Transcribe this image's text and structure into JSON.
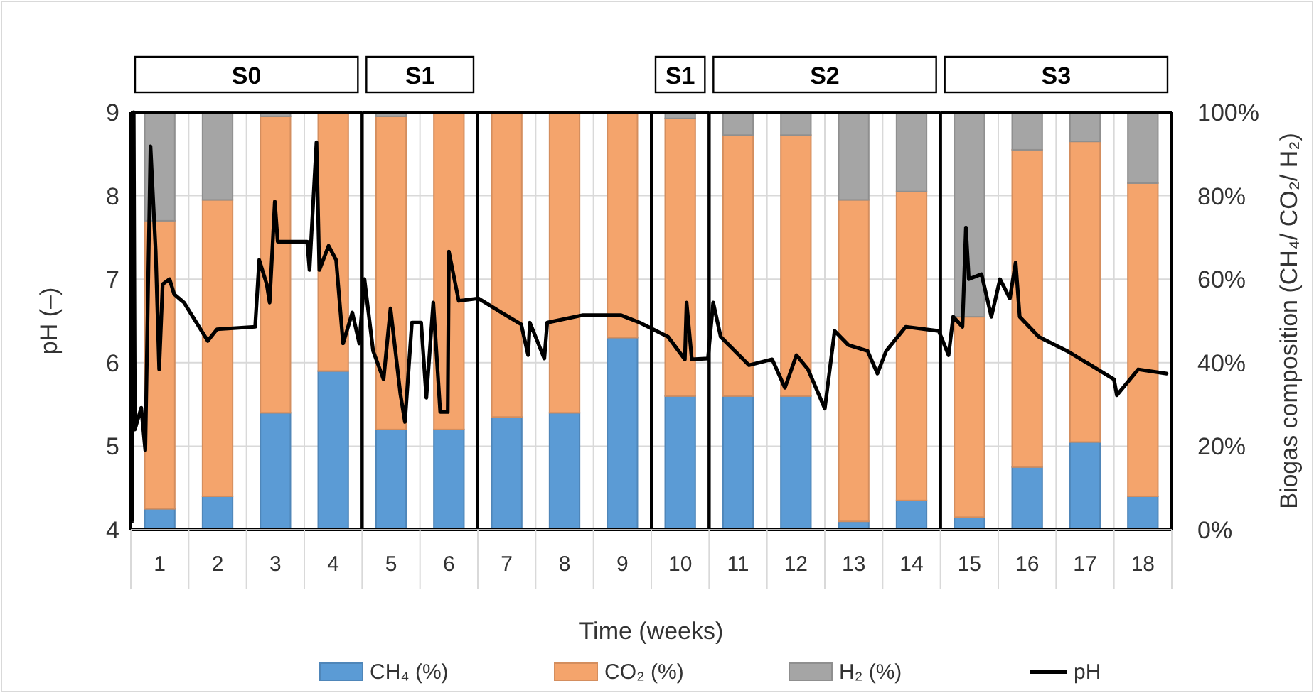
{
  "chart_data": {
    "type": "bar",
    "stacked": true,
    "xlabel": "Time (weeks)",
    "ylabel": "pH (–)",
    "y2label": "Biogas composition (CH₄/ CO₂/ H₂)",
    "x": [
      1,
      2,
      3,
      4,
      5,
      6,
      7,
      8,
      9,
      10,
      11,
      12,
      13,
      14,
      15,
      16,
      17,
      18
    ],
    "xlim": [
      0.5,
      18.5
    ],
    "xticks": [
      1,
      2,
      3,
      4,
      5,
      6,
      7,
      8,
      9,
      10,
      11,
      12,
      13,
      14,
      15,
      16,
      17,
      18
    ],
    "series": [
      {
        "name": "CH₄ (%)",
        "color": "#5b9bd5",
        "axis": "y2",
        "values": [
          5,
          8,
          28,
          38,
          24,
          24,
          27,
          28,
          46,
          32,
          32,
          32,
          2,
          7,
          3,
          15,
          21,
          8
        ]
      },
      {
        "name": "CO₂ (%)",
        "color": "#f4a46c",
        "axis": "y2",
        "values": [
          69,
          71,
          71,
          62,
          75,
          76,
          73,
          72,
          54,
          66.5,
          62.5,
          62.5,
          77,
          74,
          48,
          76,
          72,
          75
        ]
      },
      {
        "name": "H₂ (%)",
        "color": "#a5a5a5",
        "axis": "y2",
        "values": [
          26,
          21,
          1,
          0,
          1,
          0,
          0,
          0,
          0,
          1.5,
          5.5,
          5.5,
          21,
          19,
          49,
          9,
          7,
          17
        ]
      },
      {
        "name": "pH",
        "type": "line",
        "color": "#000000",
        "x": [
          0.5,
          0.52,
          0.55,
          0.57,
          0.68,
          0.75,
          0.84,
          0.93,
          0.99,
          1.05,
          1.17,
          1.25,
          1.42,
          1.83,
          1.99,
          2.65,
          2.72,
          2.85,
          2.9,
          2.99,
          3.04,
          3.55,
          3.59,
          3.71,
          3.76,
          3.92,
          4.05,
          4.17,
          4.33,
          4.45,
          4.54,
          4.69,
          4.87,
          4.99,
          5.16,
          5.24,
          5.36,
          5.52,
          5.61,
          5.73,
          5.85,
          5.98,
          6.0,
          6.17,
          6.51,
          6.91,
          7.25,
          7.37,
          7.4,
          7.65,
          7.7,
          8.32,
          8.97,
          9.3,
          9.79,
          10.08,
          10.11,
          10.2,
          10.48,
          10.57,
          10.7,
          11.19,
          11.59,
          11.81,
          12.01,
          12.21,
          12.5,
          12.67,
          12.91,
          13.24,
          13.41,
          13.56,
          13.9,
          14.47,
          14.64,
          14.72,
          14.88,
          14.94,
          14.99,
          15.21,
          15.38,
          15.53,
          15.7,
          15.8,
          15.87,
          16.2,
          16.69,
          17.1,
          17.5,
          17.55,
          17.92,
          18.41
        ],
        "values": [
          4.4,
          4.1,
          9.0,
          5.2,
          5.46,
          4.95,
          8.59,
          7.33,
          5.92,
          6.94,
          7.0,
          6.82,
          6.72,
          6.26,
          6.4,
          6.43,
          7.23,
          6.94,
          6.72,
          7.93,
          7.45,
          7.45,
          7.11,
          8.64,
          7.11,
          7.4,
          7.23,
          6.23,
          6.6,
          6.23,
          7.0,
          6.14,
          5.8,
          6.65,
          5.63,
          5.29,
          6.48,
          6.48,
          5.58,
          6.72,
          5.41,
          5.41,
          7.33,
          6.74,
          6.77,
          6.6,
          6.46,
          6.09,
          6.48,
          6.05,
          6.48,
          6.57,
          6.57,
          6.48,
          6.31,
          6.04,
          6.72,
          6.04,
          6.05,
          6.72,
          6.31,
          5.97,
          6.04,
          5.7,
          6.09,
          5.92,
          5.45,
          6.38,
          6.21,
          6.14,
          5.87,
          6.14,
          6.43,
          6.38,
          6.09,
          6.55,
          6.43,
          7.62,
          7.0,
          7.06,
          6.55,
          7.0,
          6.77,
          7.2,
          6.55,
          6.31,
          6.14,
          5.97,
          5.8,
          5.61,
          5.92,
          5.87
        ]
      }
    ],
    "ylim": [
      4,
      9
    ],
    "yticks": [
      4,
      5,
      6,
      7,
      8,
      9
    ],
    "y2lim": [
      0,
      100
    ],
    "y2ticks": [
      {
        "value": 0,
        "label": "0%"
      },
      {
        "value": 20,
        "label": "20%"
      },
      {
        "value": 40,
        "label": "40%"
      },
      {
        "value": 60,
        "label": "60%"
      },
      {
        "value": 80,
        "label": "80%"
      },
      {
        "value": 100,
        "label": "100%"
      }
    ],
    "annotations": [
      "S0",
      "S1",
      "S1",
      "S2",
      "S3"
    ],
    "grid": true,
    "legend": "bottom"
  }
}
